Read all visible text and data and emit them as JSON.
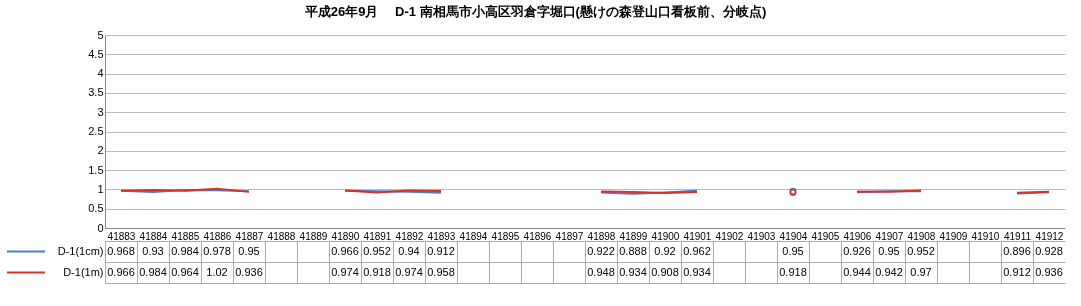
{
  "chart_data": {
    "type": "line",
    "title": "平成26年9月　 D-1 南相馬市小高区羽倉字堀口(懸けの森登山口看板前、分岐点)",
    "categories": [
      "41883",
      "41884",
      "41885",
      "41886",
      "41887",
      "41888",
      "41889",
      "41890",
      "41891",
      "41892",
      "41893",
      "41894",
      "41895",
      "41896",
      "41897",
      "41898",
      "41899",
      "41900",
      "41901",
      "41902",
      "41903",
      "41904",
      "41905",
      "41906",
      "41907",
      "41908",
      "41909",
      "41910",
      "41911",
      "41912"
    ],
    "series": [
      {
        "name": "D-1(1cm)",
        "color": "#4a7fc1",
        "values": [
          0.968,
          0.93,
          0.984,
          0.978,
          0.95,
          null,
          null,
          0.966,
          0.952,
          0.94,
          0.912,
          null,
          null,
          null,
          null,
          0.922,
          0.888,
          0.92,
          0.962,
          null,
          null,
          0.95,
          null,
          0.926,
          0.95,
          0.952,
          null,
          null,
          0.896,
          0.928
        ]
      },
      {
        "name": "D-1(1m)",
        "color": "#d9302c",
        "values": [
          0.966,
          0.984,
          0.964,
          1.02,
          0.936,
          null,
          null,
          0.974,
          0.918,
          0.974,
          0.958,
          null,
          null,
          null,
          null,
          0.948,
          0.934,
          0.908,
          0.934,
          null,
          null,
          0.918,
          null,
          0.944,
          0.942,
          0.97,
          null,
          null,
          0.912,
          0.936
        ]
      }
    ],
    "ylim": [
      0,
      5
    ],
    "yticks": [
      0,
      0.5,
      1,
      1.5,
      2,
      2.5,
      3,
      3.5,
      4,
      4.5,
      5
    ],
    "grid": "y",
    "legend": "bottom",
    "data_labels": true,
    "marker": "none"
  }
}
